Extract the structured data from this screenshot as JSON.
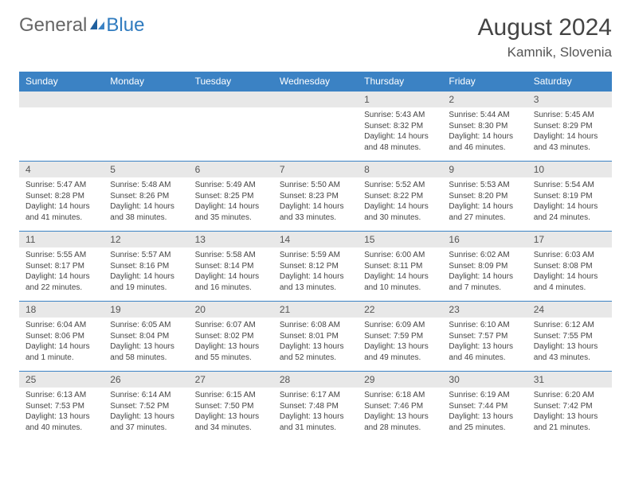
{
  "brand": {
    "part1": "General",
    "part2": "Blue"
  },
  "title": "August 2024",
  "location": "Kamnik, Slovenia",
  "colors": {
    "header_bg": "#3b82c4",
    "header_text": "#ffffff",
    "daynum_bg": "#e8e8e8",
    "row_divider": "#3b82c4",
    "text": "#444444",
    "logo_gray": "#666666",
    "logo_blue": "#2f7bbf",
    "page_bg": "#ffffff"
  },
  "weekdays": [
    "Sunday",
    "Monday",
    "Tuesday",
    "Wednesday",
    "Thursday",
    "Friday",
    "Saturday"
  ],
  "weeks": [
    [
      null,
      null,
      null,
      null,
      {
        "n": "1",
        "sr": "5:43 AM",
        "ss": "8:32 PM",
        "dl": "14 hours and 48 minutes."
      },
      {
        "n": "2",
        "sr": "5:44 AM",
        "ss": "8:30 PM",
        "dl": "14 hours and 46 minutes."
      },
      {
        "n": "3",
        "sr": "5:45 AM",
        "ss": "8:29 PM",
        "dl": "14 hours and 43 minutes."
      }
    ],
    [
      {
        "n": "4",
        "sr": "5:47 AM",
        "ss": "8:28 PM",
        "dl": "14 hours and 41 minutes."
      },
      {
        "n": "5",
        "sr": "5:48 AM",
        "ss": "8:26 PM",
        "dl": "14 hours and 38 minutes."
      },
      {
        "n": "6",
        "sr": "5:49 AM",
        "ss": "8:25 PM",
        "dl": "14 hours and 35 minutes."
      },
      {
        "n": "7",
        "sr": "5:50 AM",
        "ss": "8:23 PM",
        "dl": "14 hours and 33 minutes."
      },
      {
        "n": "8",
        "sr": "5:52 AM",
        "ss": "8:22 PM",
        "dl": "14 hours and 30 minutes."
      },
      {
        "n": "9",
        "sr": "5:53 AM",
        "ss": "8:20 PM",
        "dl": "14 hours and 27 minutes."
      },
      {
        "n": "10",
        "sr": "5:54 AM",
        "ss": "8:19 PM",
        "dl": "14 hours and 24 minutes."
      }
    ],
    [
      {
        "n": "11",
        "sr": "5:55 AM",
        "ss": "8:17 PM",
        "dl": "14 hours and 22 minutes."
      },
      {
        "n": "12",
        "sr": "5:57 AM",
        "ss": "8:16 PM",
        "dl": "14 hours and 19 minutes."
      },
      {
        "n": "13",
        "sr": "5:58 AM",
        "ss": "8:14 PM",
        "dl": "14 hours and 16 minutes."
      },
      {
        "n": "14",
        "sr": "5:59 AM",
        "ss": "8:12 PM",
        "dl": "14 hours and 13 minutes."
      },
      {
        "n": "15",
        "sr": "6:00 AM",
        "ss": "8:11 PM",
        "dl": "14 hours and 10 minutes."
      },
      {
        "n": "16",
        "sr": "6:02 AM",
        "ss": "8:09 PM",
        "dl": "14 hours and 7 minutes."
      },
      {
        "n": "17",
        "sr": "6:03 AM",
        "ss": "8:08 PM",
        "dl": "14 hours and 4 minutes."
      }
    ],
    [
      {
        "n": "18",
        "sr": "6:04 AM",
        "ss": "8:06 PM",
        "dl": "14 hours and 1 minute."
      },
      {
        "n": "19",
        "sr": "6:05 AM",
        "ss": "8:04 PM",
        "dl": "13 hours and 58 minutes."
      },
      {
        "n": "20",
        "sr": "6:07 AM",
        "ss": "8:02 PM",
        "dl": "13 hours and 55 minutes."
      },
      {
        "n": "21",
        "sr": "6:08 AM",
        "ss": "8:01 PM",
        "dl": "13 hours and 52 minutes."
      },
      {
        "n": "22",
        "sr": "6:09 AM",
        "ss": "7:59 PM",
        "dl": "13 hours and 49 minutes."
      },
      {
        "n": "23",
        "sr": "6:10 AM",
        "ss": "7:57 PM",
        "dl": "13 hours and 46 minutes."
      },
      {
        "n": "24",
        "sr": "6:12 AM",
        "ss": "7:55 PM",
        "dl": "13 hours and 43 minutes."
      }
    ],
    [
      {
        "n": "25",
        "sr": "6:13 AM",
        "ss": "7:53 PM",
        "dl": "13 hours and 40 minutes."
      },
      {
        "n": "26",
        "sr": "6:14 AM",
        "ss": "7:52 PM",
        "dl": "13 hours and 37 minutes."
      },
      {
        "n": "27",
        "sr": "6:15 AM",
        "ss": "7:50 PM",
        "dl": "13 hours and 34 minutes."
      },
      {
        "n": "28",
        "sr": "6:17 AM",
        "ss": "7:48 PM",
        "dl": "13 hours and 31 minutes."
      },
      {
        "n": "29",
        "sr": "6:18 AM",
        "ss": "7:46 PM",
        "dl": "13 hours and 28 minutes."
      },
      {
        "n": "30",
        "sr": "6:19 AM",
        "ss": "7:44 PM",
        "dl": "13 hours and 25 minutes."
      },
      {
        "n": "31",
        "sr": "6:20 AM",
        "ss": "7:42 PM",
        "dl": "13 hours and 21 minutes."
      }
    ]
  ],
  "labels": {
    "sunrise": "Sunrise: ",
    "sunset": "Sunset: ",
    "daylight": "Daylight: "
  }
}
